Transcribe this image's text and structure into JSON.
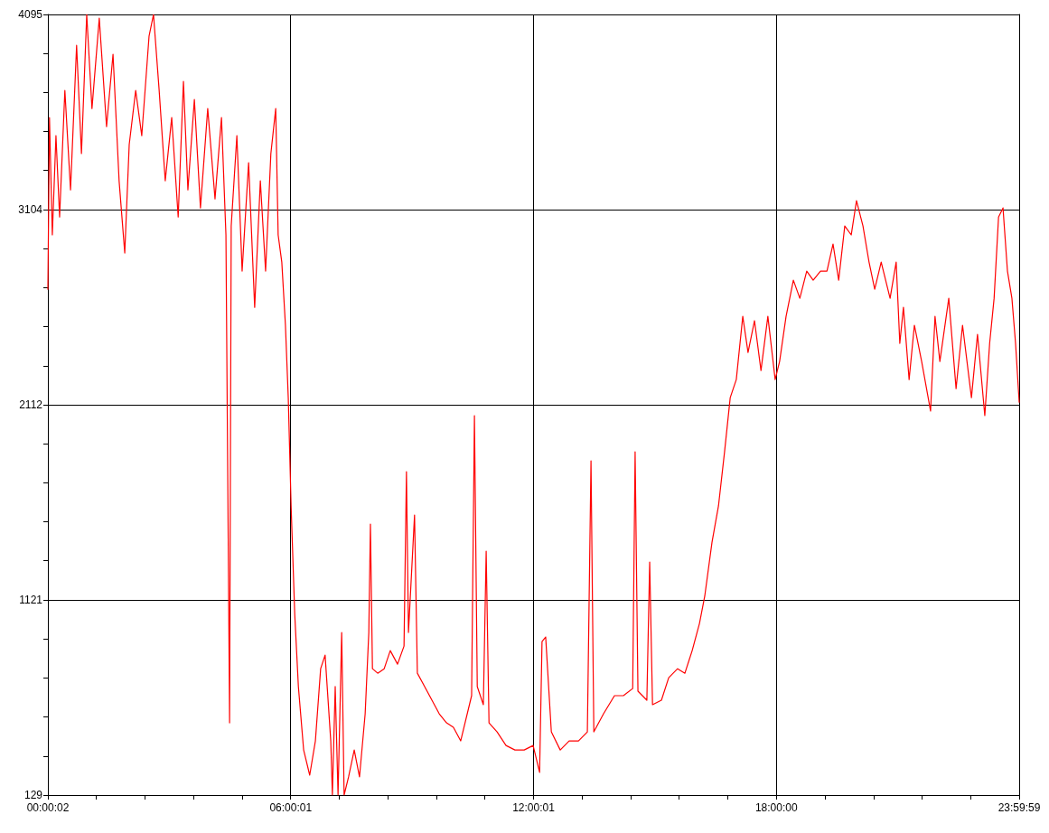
{
  "chart_data": {
    "type": "line",
    "grid": true,
    "marker": "none",
    "line_style": "solid",
    "xlim": [
      0.0006,
      23.9997
    ],
    "xticks": [
      {
        "value": 0.0006,
        "label": "00:00:02"
      },
      {
        "value": 1.2,
        "label": null
      },
      {
        "value": 2.4,
        "label": null
      },
      {
        "value": 3.6,
        "label": null
      },
      {
        "value": 4.8,
        "label": null
      },
      {
        "value": 6.0003,
        "label": "06:00:01"
      },
      {
        "value": 7.2,
        "label": null
      },
      {
        "value": 8.4,
        "label": null
      },
      {
        "value": 9.6,
        "label": null
      },
      {
        "value": 10.8,
        "label": null
      },
      {
        "value": 12.0003,
        "label": "12:00:01"
      },
      {
        "value": 13.2,
        "label": null
      },
      {
        "value": 14.4,
        "label": null
      },
      {
        "value": 15.6,
        "label": null
      },
      {
        "value": 16.8,
        "label": null
      },
      {
        "value": 18,
        "label": "18:00:00"
      },
      {
        "value": 19.2,
        "label": null
      },
      {
        "value": 20.4,
        "label": null
      },
      {
        "value": 21.6,
        "label": null
      },
      {
        "value": 22.8,
        "label": null
      },
      {
        "value": 23.9997,
        "label": "23:59:59"
      }
    ],
    "ylim": [
      129,
      4095
    ],
    "yticks": [
      129,
      {
        "value": 327.3,
        "label": null
      },
      {
        "value": 525.6,
        "label": null
      },
      {
        "value": 723.9,
        "label": null
      },
      {
        "value": 922.2,
        "label": null
      },
      1121,
      {
        "value": 1319.3,
        "label": null
      },
      {
        "value": 1517.6,
        "label": null
      },
      {
        "value": 1715.9,
        "label": null
      },
      {
        "value": 1914.2,
        "label": null
      },
      2112,
      {
        "value": 2310.3,
        "label": null
      },
      {
        "value": 2508.6,
        "label": null
      },
      {
        "value": 2706.9,
        "label": null
      },
      {
        "value": 2905.2,
        "label": null
      },
      3104,
      {
        "value": 3302.3,
        "label": null
      },
      {
        "value": 3500.6,
        "label": null
      },
      {
        "value": 3698.9,
        "label": null
      },
      {
        "value": 3897.2,
        "label": null
      },
      4095
    ],
    "series": [
      {
        "color": "#ff0000",
        "x": [
          0.0006,
          0.04,
          0.11,
          0.2,
          0.29,
          0.42,
          0.56,
          0.71,
          0.83,
          0.96,
          1.09,
          1.27,
          1.45,
          1.61,
          1.76,
          1.9,
          2.01,
          2.17,
          2.32,
          2.5,
          2.61,
          2.75,
          2.9,
          3.06,
          3.22,
          3.35,
          3.46,
          3.62,
          3.77,
          3.95,
          4.13,
          4.29,
          4.4,
          4.49,
          4.53,
          4.67,
          4.8,
          4.96,
          5.11,
          5.25,
          5.38,
          5.51,
          5.63,
          5.69,
          5.78,
          5.87,
          5.94,
          6.01,
          6.1,
          6.19,
          6.32,
          6.47,
          6.61,
          6.74,
          6.85,
          6.99,
          7.03,
          7.1,
          7.17,
          7.26,
          7.32,
          7.43,
          7.57,
          7.7,
          7.84,
          7.93,
          7.97,
          8.02,
          8.15,
          8.31,
          8.46,
          8.64,
          8.8,
          8.86,
          8.91,
          9.06,
          9.13,
          9.31,
          9.49,
          9.67,
          9.85,
          10.02,
          10.2,
          10.47,
          10.54,
          10.61,
          10.76,
          10.83,
          10.9,
          11.1,
          11.32,
          11.54,
          11.77,
          11.99,
          12.15,
          12.21,
          12.3,
          12.44,
          12.66,
          12.88,
          13.11,
          13.33,
          13.42,
          13.49,
          13.73,
          14,
          14.22,
          14.45,
          14.51,
          14.58,
          14.8,
          14.87,
          14.94,
          15.16,
          15.34,
          15.56,
          15.74,
          15.92,
          16.1,
          16.23,
          16.41,
          16.57,
          16.72,
          16.86,
          17.01,
          17.17,
          17.3,
          17.46,
          17.62,
          17.79,
          17.97,
          18.08,
          18.24,
          18.42,
          18.58,
          18.75,
          18.91,
          19.09,
          19.25,
          19.4,
          19.54,
          19.69,
          19.85,
          19.98,
          20.14,
          20.29,
          20.43,
          20.59,
          20.81,
          20.96,
          21.05,
          21.14,
          21.28,
          21.41,
          21.59,
          21.81,
          21.92,
          22.04,
          22.26,
          22.44,
          22.6,
          22.82,
          22.97,
          23.15,
          23.27,
          23.38,
          23.49,
          23.6,
          23.71,
          23.82,
          23.91,
          23.9997
        ],
        "values": [
          2699,
          3571,
          2975,
          3479,
          3066,
          3709,
          3204,
          3938,
          3388,
          4095,
          3617,
          4076,
          3525,
          3893,
          3250,
          2883,
          3434,
          3709,
          3479,
          3984,
          4095,
          3709,
          3250,
          3571,
          3066,
          3755,
          3204,
          3663,
          3112,
          3617,
          3158,
          3571,
          2975,
          496,
          3020,
          3479,
          2791,
          3342,
          2607,
          3250,
          2791,
          3388,
          3617,
          2975,
          2837,
          2516,
          2148,
          1598,
          1047,
          680,
          358,
          230,
          404,
          771,
          840,
          404,
          129,
          680,
          129,
          955,
          129,
          221,
          358,
          221,
          542,
          955,
          1506,
          771,
          748,
          771,
          863,
          794,
          886,
          1772,
          955,
          1552,
          748,
          680,
          611,
          542,
          496,
          473,
          404,
          634,
          2057,
          680,
          588,
          1368,
          496,
          450,
          381,
          358,
          358,
          381,
          244,
          909,
          932,
          450,
          358,
          404,
          404,
          450,
          1827,
          450,
          542,
          634,
          634,
          670,
          1873,
          657,
          611,
          1313,
          588,
          611,
          725,
          771,
          748,
          863,
          1001,
          1139,
          1414,
          1598,
          1873,
          2148,
          2240,
          2561,
          2378,
          2539,
          2286,
          2561,
          2240,
          2332,
          2561,
          2745,
          2653,
          2791,
          2745,
          2791,
          2791,
          2929,
          2745,
          3020,
          2975,
          3149,
          3020,
          2837,
          2699,
          2837,
          2653,
          2837,
          2424,
          2607,
          2240,
          2516,
          2332,
          2080,
          2561,
          2332,
          2653,
          2194,
          2516,
          2148,
          2470,
          2057,
          2424,
          2653,
          3066,
          3112,
          2791,
          2653,
          2424,
          2125
        ]
      }
    ]
  }
}
